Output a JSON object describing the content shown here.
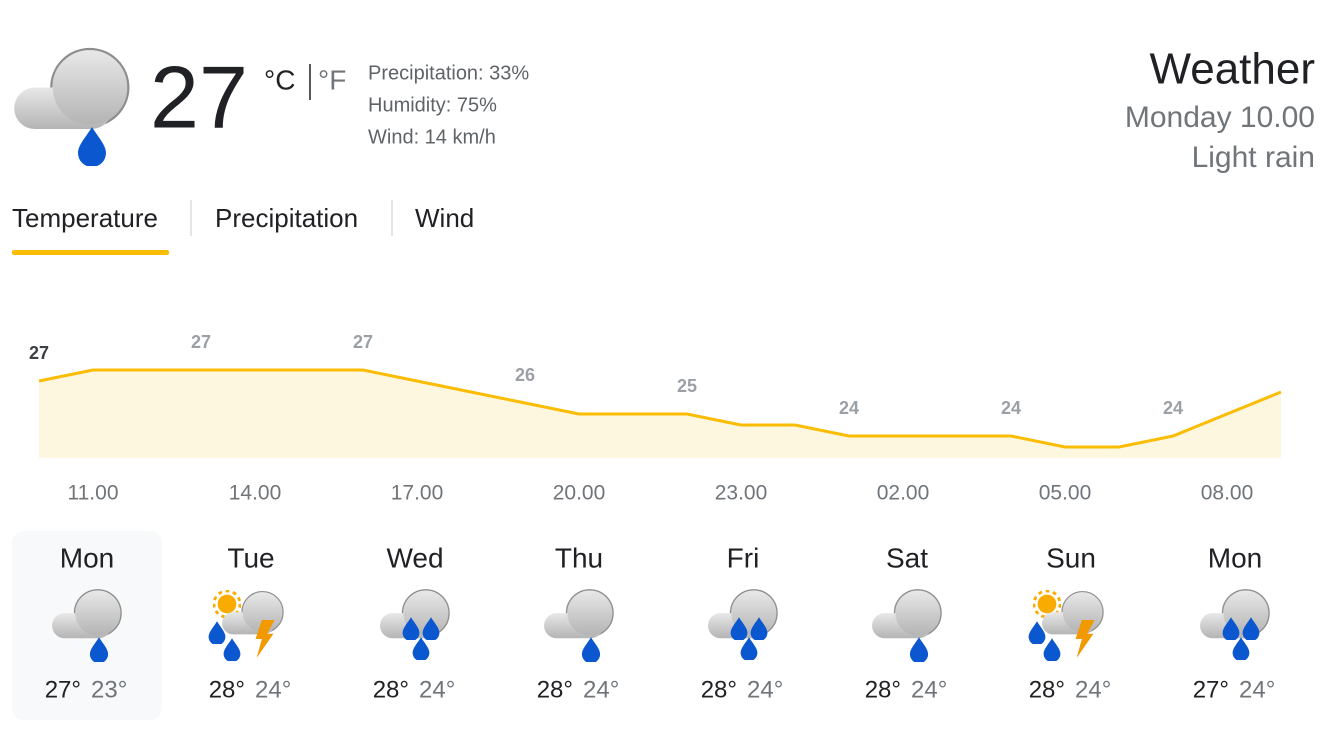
{
  "current": {
    "temperature": "27",
    "unit_c": "°C",
    "unit_f": "°F",
    "precipitation": "Precipitation: 33%",
    "humidity": "Humidity: 75%",
    "wind": "Wind: 14 km/h"
  },
  "header": {
    "title": "Weather",
    "time": "Monday 10.00",
    "condition": "Light rain"
  },
  "tabs": [
    "Temperature",
    "Precipitation",
    "Wind"
  ],
  "chart_data": {
    "type": "area",
    "x": [
      null,
      "11.00",
      null,
      null,
      "14.00",
      null,
      null,
      "17.00",
      null,
      null,
      "20.00",
      null,
      null,
      "23.00",
      null,
      null,
      "02.00",
      null,
      null,
      "05.00",
      null,
      null,
      "08.00",
      null
    ],
    "values": [
      26.5,
      27,
      27,
      27,
      27,
      27,
      27,
      26.5,
      26,
      25.5,
      25,
      25,
      25,
      24.5,
      24.5,
      24,
      24,
      24,
      24,
      23.5,
      23.5,
      24,
      25,
      26
    ],
    "value_labels": [
      "27",
      null,
      null,
      "27",
      null,
      null,
      "27",
      null,
      null,
      "26",
      null,
      null,
      "25",
      null,
      null,
      "24",
      null,
      null,
      "24",
      null,
      null,
      "24",
      null,
      null
    ],
    "color": "#fbbc04",
    "fill": "#fef7e0",
    "ylim": [
      23,
      28
    ]
  },
  "days": [
    {
      "name": "Mon",
      "high": "27°",
      "low": "23°"
    },
    {
      "name": "Tue",
      "high": "28°",
      "low": "24°"
    },
    {
      "name": "Wed",
      "high": "28°",
      "low": "24°"
    },
    {
      "name": "Thu",
      "high": "28°",
      "low": "24°"
    },
    {
      "name": "Fri",
      "high": "28°",
      "low": "24°"
    },
    {
      "name": "Sat",
      "high": "28°",
      "low": "24°"
    },
    {
      "name": "Sun",
      "high": "28°",
      "low": "24°"
    },
    {
      "name": "Mon",
      "high": "27°",
      "low": "24°"
    }
  ]
}
